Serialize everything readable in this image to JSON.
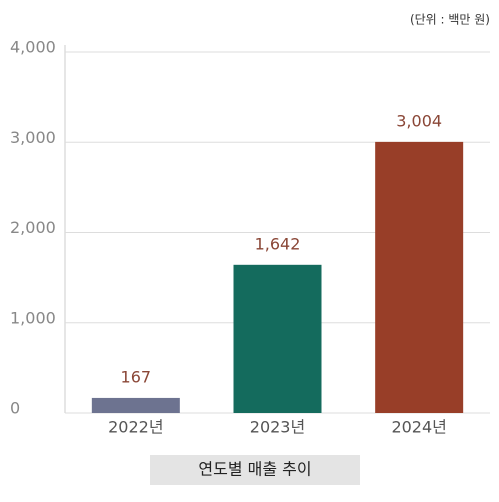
{
  "chart_data": {
    "type": "bar",
    "unit_note": "(단위 : 백만 원)",
    "caption": "연도별 매출 추이",
    "categories": [
      "2022년",
      "2023년",
      "2024년"
    ],
    "values": [
      167,
      1642,
      3004
    ],
    "value_labels": [
      "167",
      "1,642",
      "3,004"
    ],
    "colors": [
      "#6d7390",
      "#146b5d",
      "#983e28"
    ],
    "label_color": "#8a4636",
    "ylim": [
      0,
      4000
    ],
    "yticks": [
      0,
      {
        "value": 1000,
        "label": "1,000"
      },
      {
        "value": 2000,
        "label": "2,000"
      },
      {
        "value": 3000,
        "label": "3,000"
      },
      {
        "value": 4000,
        "label": "4,000"
      }
    ],
    "grid": true
  }
}
